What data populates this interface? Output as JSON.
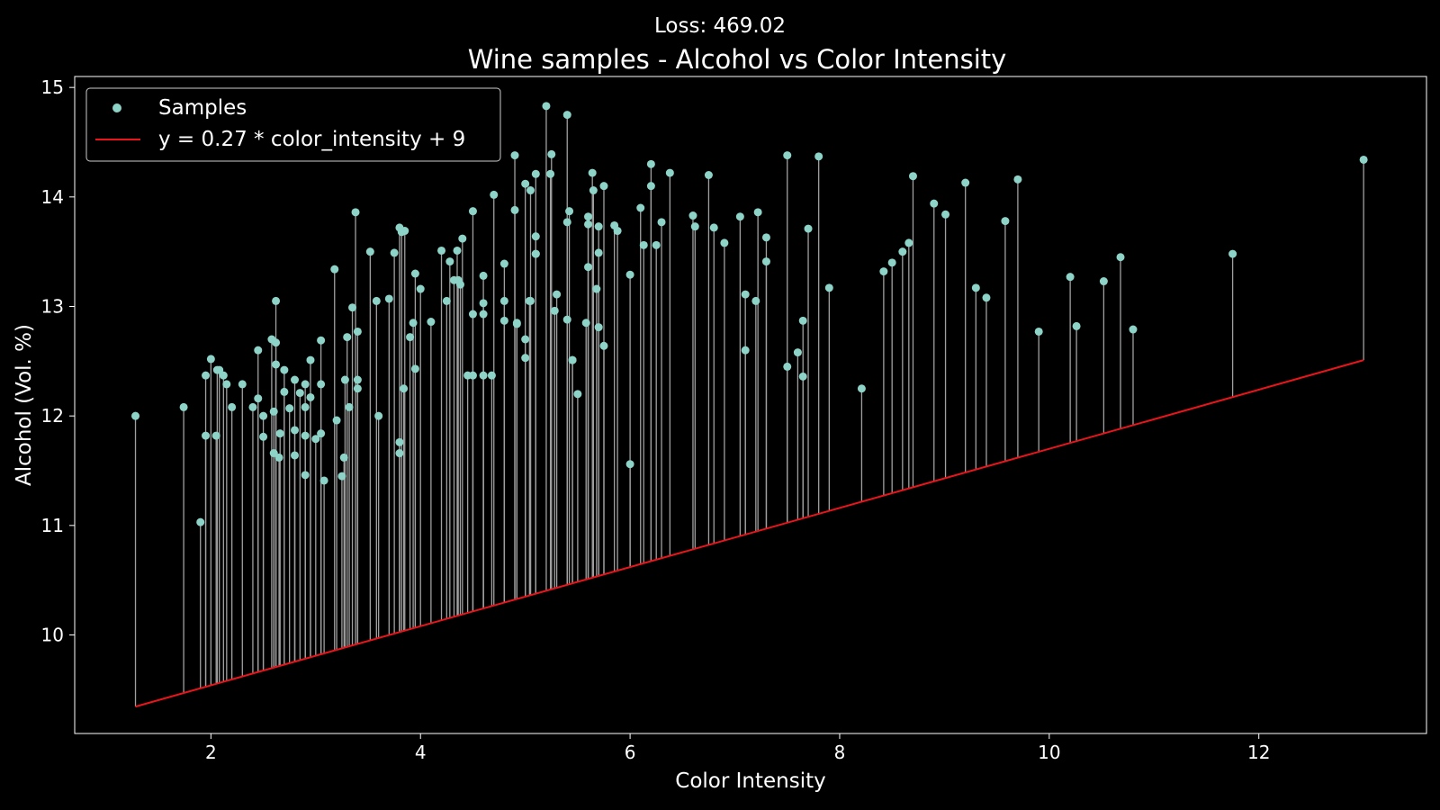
{
  "chart_data": {
    "type": "scatter",
    "suptitle": "Loss: 469.02",
    "title": "Wine samples - Alcohol vs Color Intensity",
    "xlabel": "Color Intensity",
    "ylabel": "Alcohol (Vol. %)",
    "xlim": [
      0.7,
      13.6
    ],
    "ylim": [
      9.1,
      15.1
    ],
    "xticks": [
      2,
      4,
      6,
      8,
      10,
      12
    ],
    "yticks": [
      10,
      11,
      12,
      13,
      14,
      15
    ],
    "grid": false,
    "legend_position": "top-left",
    "legend": [
      "Samples",
      "y = 0.27 * color_intensity + 9"
    ],
    "line": {
      "name": "y = 0.27 * color_intensity + 9",
      "slope": 0.27,
      "intercept": 9.0
    },
    "colors": {
      "background": "#000000",
      "points": "#8dd3c7",
      "line": "#e8151b",
      "residuals": "#a0a0a0",
      "axes": "#ffffff"
    },
    "series": [
      {
        "name": "Samples",
        "x": [
          1.28,
          1.74,
          1.9,
          1.95,
          1.95,
          2.0,
          2.05,
          2.06,
          2.08,
          2.12,
          2.15,
          2.2,
          2.3,
          2.4,
          2.45,
          2.45,
          2.5,
          2.5,
          2.58,
          2.6,
          2.6,
          2.62,
          2.62,
          2.62,
          2.65,
          2.66,
          2.7,
          2.7,
          2.75,
          2.8,
          2.8,
          2.8,
          2.85,
          2.9,
          2.9,
          2.9,
          2.9,
          2.95,
          2.95,
          3.0,
          3.05,
          3.05,
          3.05,
          3.08,
          3.18,
          3.2,
          3.25,
          3.27,
          3.28,
          3.3,
          3.32,
          3.35,
          3.38,
          3.4,
          3.4,
          3.4,
          3.52,
          3.58,
          3.6,
          3.7,
          3.75,
          3.8,
          3.8,
          3.8,
          3.82,
          3.84,
          3.85,
          3.9,
          3.93,
          3.95,
          3.95,
          4.0,
          4.1,
          4.2,
          4.25,
          4.28,
          4.32,
          4.35,
          4.36,
          4.38,
          4.4,
          4.45,
          4.5,
          4.5,
          4.5,
          4.6,
          4.6,
          4.6,
          4.6,
          4.68,
          4.7,
          4.8,
          4.8,
          4.8,
          4.9,
          4.9,
          4.92,
          4.92,
          5.0,
          5.0,
          5.0,
          5.04,
          5.05,
          5.05,
          5.1,
          5.1,
          5.1,
          5.1,
          5.2,
          5.24,
          5.25,
          5.28,
          5.3,
          5.4,
          5.4,
          5.4,
          5.42,
          5.45,
          5.45,
          5.5,
          5.58,
          5.6,
          5.6,
          5.6,
          5.64,
          5.65,
          5.68,
          5.7,
          5.7,
          5.7,
          5.75,
          5.75,
          5.85,
          5.88,
          6.0,
          6.0,
          6.1,
          6.13,
          6.2,
          6.2,
          6.25,
          6.3,
          6.38,
          6.6,
          6.62,
          6.75,
          6.8,
          6.9,
          7.05,
          7.1,
          7.1,
          7.2,
          7.22,
          7.3,
          7.3,
          7.5,
          7.5,
          7.6,
          7.65,
          7.65,
          7.7,
          7.8,
          7.9,
          8.21,
          8.42,
          8.5,
          8.6,
          8.66,
          8.7,
          8.9,
          9.01,
          9.2,
          9.3,
          9.4,
          9.58,
          9.7,
          9.9,
          10.2,
          10.26,
          10.52,
          10.68,
          10.8,
          11.75,
          13.0
        ],
        "y": [
          12.0,
          12.08,
          11.03,
          11.82,
          12.37,
          12.52,
          11.82,
          12.42,
          12.42,
          12.37,
          12.29,
          12.08,
          12.29,
          12.08,
          12.16,
          12.6,
          12.0,
          11.81,
          12.7,
          11.66,
          12.04,
          12.47,
          13.05,
          12.67,
          11.62,
          11.84,
          12.22,
          12.42,
          12.07,
          11.64,
          11.87,
          12.33,
          12.21,
          11.46,
          11.82,
          12.08,
          12.29,
          12.51,
          12.17,
          11.79,
          11.84,
          12.29,
          12.69,
          11.41,
          13.34,
          11.96,
          11.45,
          11.62,
          12.33,
          12.72,
          12.08,
          12.99,
          13.86,
          12.25,
          12.77,
          12.33,
          13.5,
          13.05,
          12.0,
          13.07,
          13.49,
          11.76,
          11.66,
          13.72,
          13.68,
          12.25,
          13.69,
          12.72,
          12.85,
          13.3,
          12.43,
          13.16,
          12.86,
          13.51,
          13.05,
          13.41,
          13.24,
          13.51,
          13.24,
          13.2,
          13.62,
          12.37,
          12.37,
          12.93,
          13.87,
          13.28,
          13.03,
          12.93,
          12.37,
          12.37,
          14.02,
          13.39,
          13.05,
          12.87,
          13.88,
          14.38,
          12.84,
          12.85,
          12.53,
          12.7,
          14.12,
          13.05,
          14.06,
          13.05,
          14.21,
          13.64,
          13.48,
          13.48,
          14.83,
          14.21,
          14.39,
          12.96,
          13.11,
          14.75,
          13.77,
          12.88,
          13.87,
          12.51,
          12.51,
          12.2,
          12.85,
          13.82,
          13.36,
          13.75,
          14.22,
          14.06,
          13.16,
          12.81,
          13.73,
          13.49,
          12.64,
          14.1,
          13.74,
          13.69,
          11.56,
          13.29,
          13.9,
          13.56,
          14.3,
          14.1,
          13.56,
          13.77,
          14.22,
          13.83,
          13.73,
          14.2,
          13.72,
          13.58,
          13.82,
          13.11,
          12.6,
          13.05,
          13.86,
          13.63,
          13.41,
          14.38,
          12.45,
          12.58,
          12.87,
          12.36,
          13.71,
          14.37,
          13.17,
          12.25,
          13.32,
          13.4,
          13.5,
          13.58,
          14.19,
          13.94,
          13.84,
          14.13,
          13.17,
          13.08,
          13.78,
          14.16,
          12.77,
          13.27,
          12.82,
          13.23,
          13.45,
          12.79,
          13.48,
          14.34
        ]
      }
    ]
  }
}
